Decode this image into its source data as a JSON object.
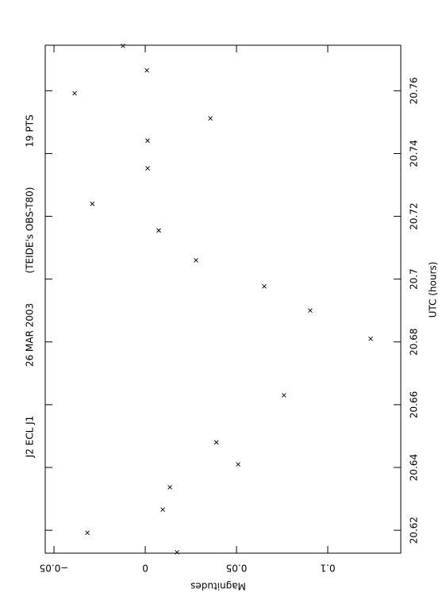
{
  "chart_data": {
    "type": "scatter",
    "title_parts": [
      "J2 ECL J1",
      "26 MAR 2003",
      "(TEIDE's OBS-T80)",
      "19 PTS"
    ],
    "x_label": "UTC (hours)",
    "y_label": "Magnitudes",
    "xlim": [
      20.6127,
      20.7745
    ],
    "xticks": [
      20.62,
      20.64,
      20.66,
      20.68,
      20.7,
      20.72,
      20.74,
      20.76
    ],
    "ylim": [
      -0.0548,
      0.14
    ],
    "yticks": [
      {
        "value": -0.05,
        "label": "−0.05"
      },
      0,
      0.05,
      0.1
    ],
    "series": [
      {
        "color": "#000000",
        "x": [
          20.6192,
          20.6266,
          20.6337,
          20.613,
          20.641,
          20.648,
          20.663,
          20.681,
          20.69,
          20.6977,
          20.706,
          20.7155,
          20.724,
          20.7353,
          20.7441,
          20.7512,
          20.7592,
          20.7665,
          20.7743
        ],
        "values": [
          -0.0317,
          0.0096,
          0.0135,
          0.0174,
          0.0509,
          0.039,
          0.076,
          0.1235,
          0.0904,
          0.0652,
          0.0278,
          0.0074,
          -0.029,
          0.0013,
          0.0013,
          0.0357,
          -0.0387,
          0.0009,
          -0.0122
        ]
      }
    ]
  }
}
